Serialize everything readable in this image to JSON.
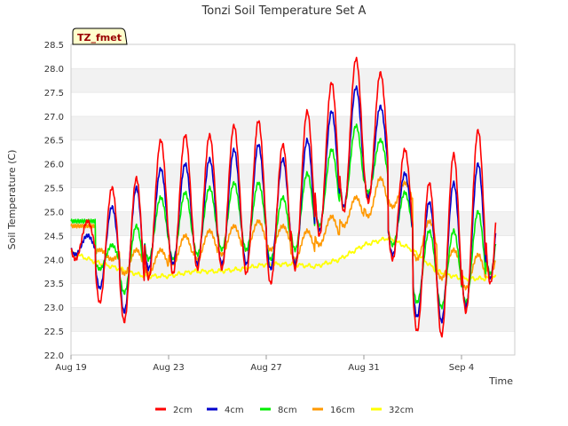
{
  "chart_data": {
    "type": "line",
    "title": "Tonzi Soil Temperature Set A",
    "site_tag": "TZ_fmet",
    "xlabel": "Time",
    "ylabel": "Soil Temperature (C)",
    "ylim": [
      22.0,
      28.5
    ],
    "yticks": [
      "22.0",
      "22.5",
      "23.0",
      "23.5",
      "24.0",
      "24.5",
      "25.0",
      "25.5",
      "26.0",
      "26.5",
      "27.0",
      "27.5",
      "28.0",
      "28.5"
    ],
    "x_start": "Aug 19",
    "x_end": "Sep 5",
    "xticks": [
      {
        "label": "Aug 19",
        "day": 0
      },
      {
        "label": "Aug 23",
        "day": 4
      },
      {
        "label": "Aug 27",
        "day": 8
      },
      {
        "label": "Aug 31",
        "day": 12
      },
      {
        "label": "Sep 4",
        "day": 16
      }
    ],
    "grid": "horizontal banded",
    "legend_position": "bottom",
    "days": [
      0,
      1,
      2,
      3,
      4,
      5,
      6,
      7,
      8,
      9,
      10,
      11,
      12,
      13,
      14,
      15,
      16,
      17
    ],
    "series": [
      {
        "name": "2cm",
        "color": "#ff0000",
        "peaks": [
          24.8,
          25.5,
          25.7,
          26.5,
          26.6,
          26.6,
          26.8,
          26.9,
          26.4,
          27.1,
          27.7,
          28.2,
          27.9,
          26.3,
          25.6,
          26.2,
          26.7,
          26.7
        ],
        "troughs": [
          24.0,
          23.1,
          22.7,
          23.6,
          23.7,
          23.8,
          23.8,
          23.7,
          23.5,
          23.8,
          24.5,
          25.0,
          25.2,
          24.0,
          22.5,
          22.4,
          22.9,
          23.5
        ]
      },
      {
        "name": "4cm",
        "color": "#0000cc",
        "peaks": [
          24.5,
          25.1,
          25.5,
          25.9,
          26.0,
          26.1,
          26.3,
          26.4,
          26.1,
          26.5,
          27.1,
          27.6,
          27.2,
          25.8,
          25.2,
          25.6,
          26.0,
          26.0
        ],
        "troughs": [
          24.1,
          23.4,
          22.9,
          23.8,
          23.9,
          23.9,
          23.9,
          23.9,
          23.8,
          23.9,
          24.6,
          25.1,
          25.3,
          24.1,
          22.8,
          22.7,
          23.0,
          23.6
        ]
      },
      {
        "name": "8cm",
        "color": "#00ee00",
        "peaks": [
          24.8,
          24.3,
          24.7,
          25.3,
          25.4,
          25.5,
          25.6,
          25.6,
          25.3,
          25.8,
          26.3,
          26.8,
          26.5,
          25.4,
          24.6,
          24.6,
          25.0,
          25.3
        ],
        "troughs": [
          24.8,
          23.8,
          23.3,
          24.0,
          24.0,
          24.1,
          24.2,
          24.2,
          24.0,
          24.2,
          24.7,
          25.1,
          25.4,
          24.3,
          23.1,
          23.0,
          23.1,
          23.7
        ]
      },
      {
        "name": "16cm",
        "color": "#ff9900",
        "peaks": [
          24.7,
          24.0,
          24.2,
          24.2,
          24.5,
          24.6,
          24.7,
          24.8,
          24.7,
          24.6,
          24.9,
          25.3,
          25.7,
          25.6,
          24.8,
          24.2,
          24.1,
          24.4
        ],
        "troughs": [
          24.7,
          24.2,
          23.7,
          23.7,
          23.9,
          24.0,
          24.1,
          24.2,
          24.2,
          24.0,
          24.3,
          24.7,
          24.9,
          25.1,
          24.0,
          23.6,
          23.4,
          23.7
        ],
        "end": 24.55
      },
      {
        "name": "32cm",
        "color": "#ffff00",
        "values": [
          24.15,
          23.95,
          23.8,
          23.65,
          23.65,
          23.75,
          23.75,
          23.8,
          23.9,
          23.9,
          23.85,
          24.0,
          24.3,
          24.45,
          24.2,
          23.75,
          23.6,
          23.6
        ],
        "end": 23.72
      }
    ]
  }
}
